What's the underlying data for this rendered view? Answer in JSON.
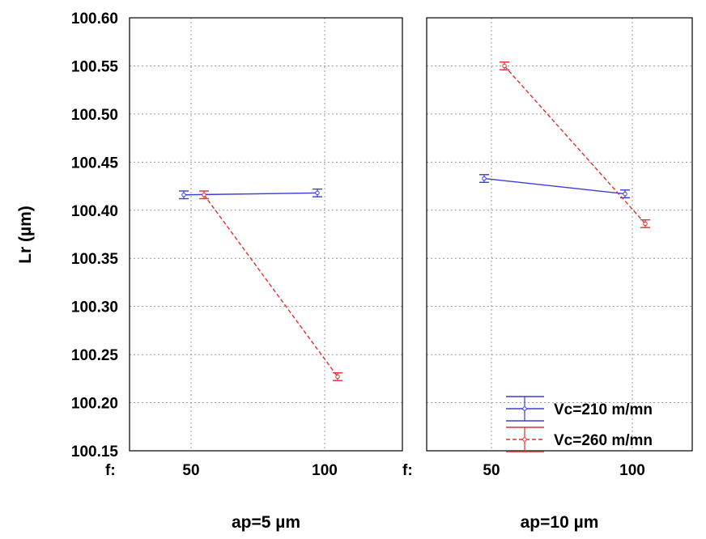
{
  "chart_data": {
    "type": "line",
    "ylabel": "Lr (µm)",
    "ylim": [
      100.15,
      100.6
    ],
    "yticks": [
      "100.60",
      "100.55",
      "100.50",
      "100.45",
      "100.40",
      "100.35",
      "100.30",
      "100.25",
      "100.20",
      "100.15"
    ],
    "x_prefix": "f:",
    "categories": [
      "50",
      "100"
    ],
    "grid": true,
    "legend_position": "bottom-right",
    "error_bar_halfwidth": 0.004,
    "panels": [
      {
        "label": "ap=5 µm",
        "series": [
          {
            "name": "Vc=210 m/mn",
            "color": "#3c3cdc",
            "dash": "solid",
            "values": [
              100.416,
              100.418
            ]
          },
          {
            "name": "Vc=260 m/mn",
            "color": "#e03030",
            "dash": "dashed",
            "values": [
              100.416,
              100.227
            ]
          }
        ]
      },
      {
        "label": "ap=10 µm",
        "series": [
          {
            "name": "Vc=210 m/mn",
            "color": "#3c3cdc",
            "dash": "solid",
            "values": [
              100.433,
              100.417
            ]
          },
          {
            "name": "Vc=260 m/mn",
            "color": "#e03030",
            "dash": "dashed",
            "values": [
              100.55,
              100.386
            ]
          }
        ]
      }
    ],
    "legend": [
      {
        "name": "Vc=210 m/mn",
        "color": "#3c3cdc",
        "dash": "solid"
      },
      {
        "name": "Vc=260 m/mn",
        "color": "#e03030",
        "dash": "dashed"
      }
    ]
  }
}
